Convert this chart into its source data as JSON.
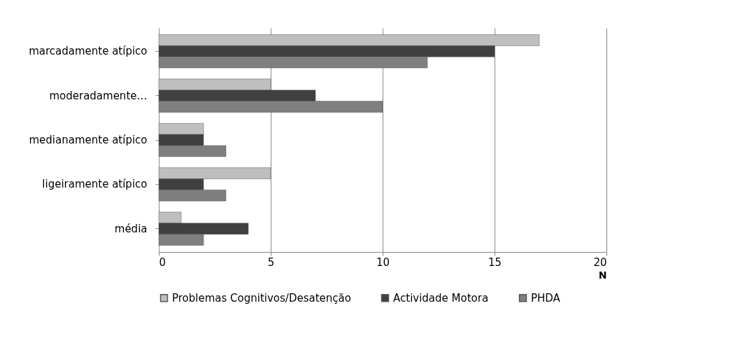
{
  "chart_data": {
    "type": "bar",
    "orientation": "horizontal",
    "categories": [
      "marcadamente atípico",
      "moderadamente…",
      "medianamente atípico",
      "ligeiramente atípico",
      "média"
    ],
    "series": [
      {
        "name": "Problemas Cognitivos/Desatenção",
        "color": "#bfbfbf",
        "values": [
          17,
          5,
          2,
          5,
          1
        ]
      },
      {
        "name": "Actividade Motora",
        "color": "#404040",
        "values": [
          15,
          7,
          2,
          2,
          4
        ]
      },
      {
        "name": "PHDA",
        "color": "#7f7f7f",
        "values": [
          12,
          10,
          3,
          3,
          2
        ]
      }
    ],
    "xlabel": "N",
    "xlim": [
      0,
      20
    ],
    "xticks": [
      0,
      5,
      10,
      15,
      20
    ],
    "grid": "x",
    "legend": "bottom"
  }
}
